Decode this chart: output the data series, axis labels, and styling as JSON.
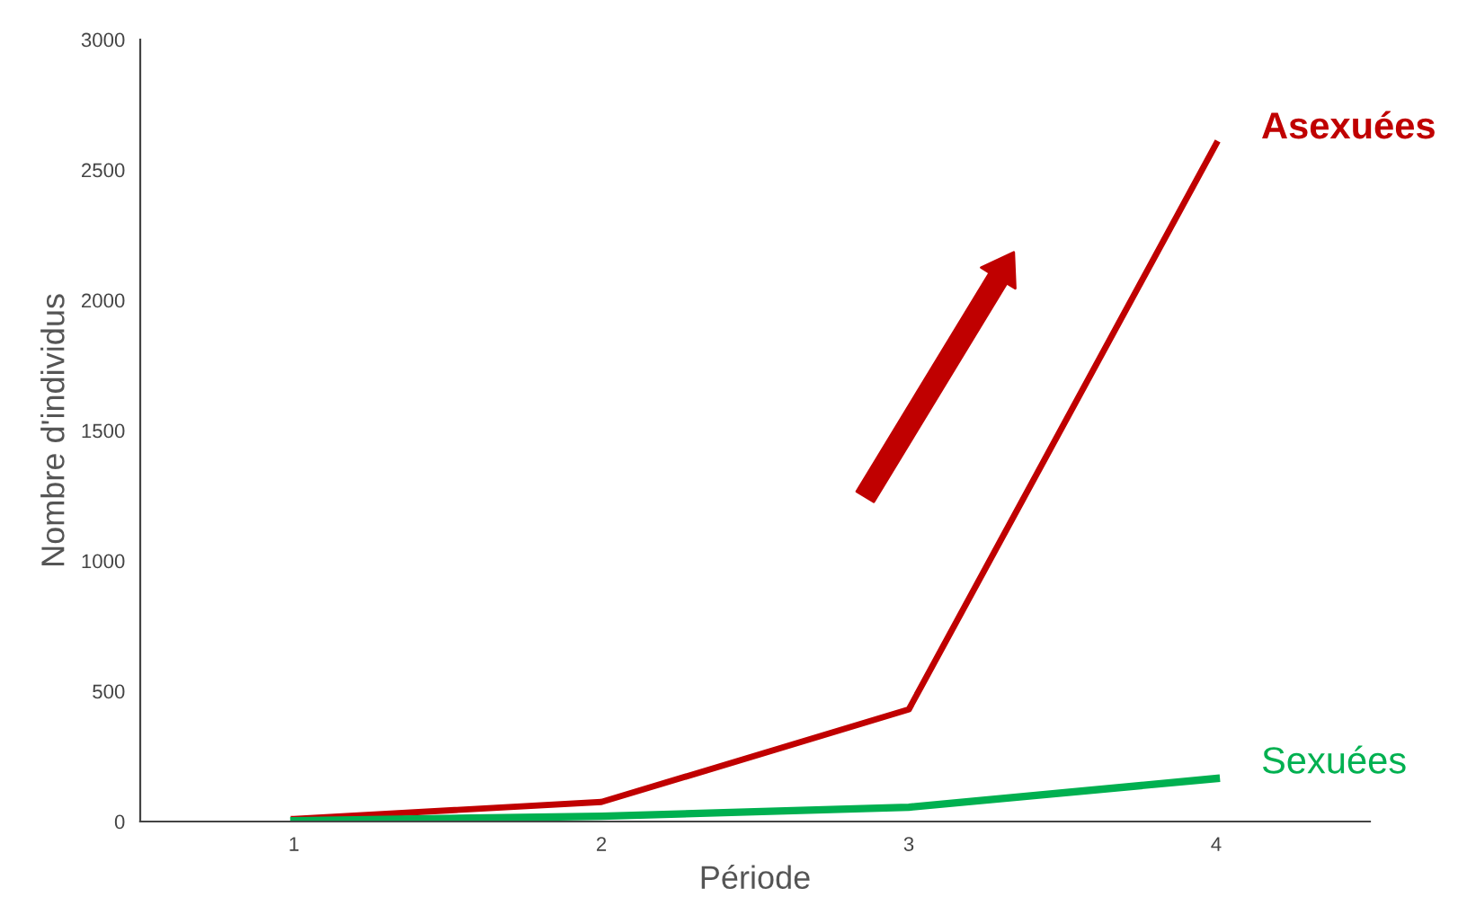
{
  "chart_data": {
    "type": "line",
    "xlabel": "Période",
    "ylabel": "Nombre d'individus",
    "x": [
      1,
      2,
      3,
      4
    ],
    "series": [
      {
        "name": "Asexuées",
        "color": "#c00000",
        "values": [
          10,
          75,
          430,
          2600
        ]
      },
      {
        "name": "Sexuées",
        "color": "#00b050",
        "values": [
          3,
          20,
          55,
          165
        ]
      }
    ],
    "xlim": [
      0.5,
      4.5
    ],
    "xticks": [
      1,
      2,
      3,
      4
    ],
    "ylim": [
      0,
      3000
    ],
    "yticks": [
      0,
      500,
      1000,
      1500,
      2000,
      2500,
      3000
    ],
    "grid": false,
    "legend": false,
    "marker": "none",
    "line_style": "solid"
  }
}
